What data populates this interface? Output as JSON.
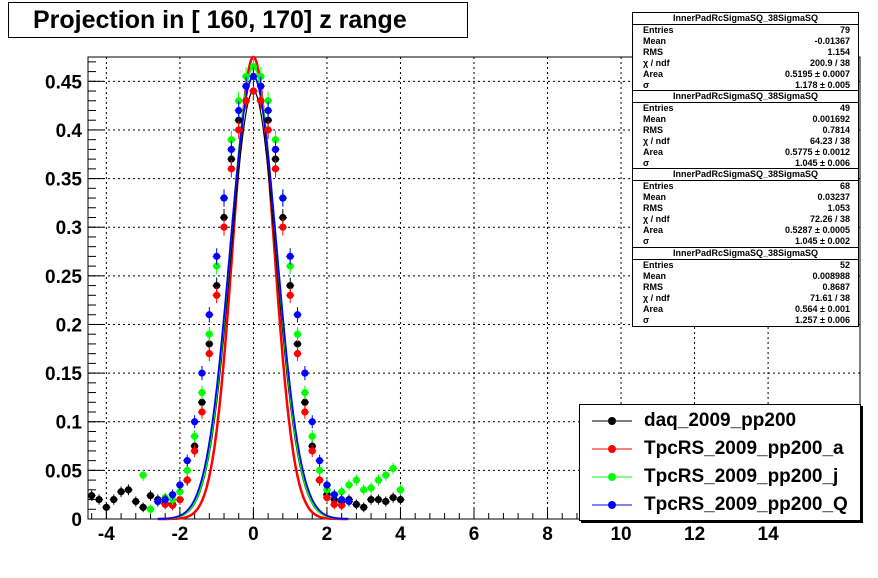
{
  "title": "Projection in [ 160, 170] z range",
  "stats": [
    {
      "name": "InnerPadRcSigmaSQ_38SigmaSQ",
      "rows": [
        [
          "Entries",
          "79"
        ],
        [
          "Mean",
          "-0.01367"
        ],
        [
          "RMS",
          "1.154"
        ],
        [
          "χ  / ndf",
          "200.9 / 38"
        ],
        [
          "Area",
          "0.5195 ± 0.0007"
        ],
        [
          "σ",
          "1.178 ± 0.005"
        ]
      ]
    },
    {
      "name": "InnerPadRcSigmaSQ_38SigmaSQ",
      "rows": [
        [
          "Entries",
          "49"
        ],
        [
          "Mean",
          "0.001692"
        ],
        [
          "RMS",
          "0.7814"
        ],
        [
          "χ  / ndf",
          "64.23 / 38"
        ],
        [
          "Area",
          "0.5775 ± 0.0012"
        ],
        [
          "σ",
          "1.045 ± 0.006"
        ]
      ]
    },
    {
      "name": "InnerPadRcSigmaSQ_38SigmaSQ",
      "rows": [
        [
          "Entries",
          "68"
        ],
        [
          "Mean",
          "0.03237"
        ],
        [
          "RMS",
          "1.053"
        ],
        [
          "χ  / ndf",
          "72.26 / 38"
        ],
        [
          "Area",
          "0.5287 ± 0.0005"
        ],
        [
          "σ",
          "1.045 ± 0.002"
        ]
      ]
    },
    {
      "name": "InnerPadRcSigmaSQ_38SigmaSQ",
      "rows": [
        [
          "Entries",
          "52"
        ],
        [
          "Mean",
          "0.008988"
        ],
        [
          "RMS",
          "0.8687"
        ],
        [
          "χ  / ndf",
          "71.61 / 38"
        ],
        [
          "Area",
          "0.564 ± 0.001"
        ],
        [
          "σ",
          "1.257 ± 0.006"
        ]
      ]
    }
  ],
  "legend": [
    {
      "label": "daq_2009_pp200",
      "color": "#000000"
    },
    {
      "label": "TpcRS_2009_pp200_a",
      "color": "#ff0000"
    },
    {
      "label": "TpcRS_2009_pp200_j",
      "color": "#00ff00"
    },
    {
      "label": "TpcRS_2009_pp200_Q",
      "color": "#0000ff"
    }
  ],
  "chart_data": {
    "type": "scatter",
    "title": "Projection in [ 160, 170] z range",
    "xlim": [
      -4.5,
      16.5
    ],
    "ylim": [
      0,
      0.475
    ],
    "xticks": [
      -4,
      -2,
      0,
      2,
      4,
      6,
      8,
      10,
      12,
      14
    ],
    "yticks": [
      0,
      0.05,
      0.1,
      0.15,
      0.2,
      0.25,
      0.3,
      0.35,
      0.4,
      0.45
    ],
    "grid": true,
    "legend_position": "bottom-right",
    "series": [
      {
        "name": "daq_2009_pp200",
        "color": "#000000",
        "x": [
          -4.4,
          -4.2,
          -4.0,
          -3.8,
          -3.6,
          -3.4,
          -3.2,
          -3.0,
          -2.8,
          -2.6,
          -2.4,
          -2.2,
          -2.0,
          -1.8,
          -1.6,
          -1.4,
          -1.2,
          -1.0,
          -0.8,
          -0.6,
          -0.4,
          -0.2,
          0.0,
          0.2,
          0.4,
          0.6,
          0.8,
          1.0,
          1.2,
          1.4,
          1.6,
          1.8,
          2.0,
          2.2,
          2.4,
          2.6,
          2.8,
          3.0,
          3.2,
          3.4,
          3.6,
          3.8,
          4.0
        ],
        "y": [
          0.024,
          0.02,
          0.012,
          0.02,
          0.028,
          0.03,
          0.018,
          0.012,
          0.024,
          0.02,
          0.016,
          0.015,
          0.02,
          0.04,
          0.075,
          0.12,
          0.18,
          0.24,
          0.31,
          0.37,
          0.41,
          0.43,
          0.44,
          0.43,
          0.41,
          0.37,
          0.31,
          0.24,
          0.18,
          0.12,
          0.075,
          0.04,
          0.025,
          0.02,
          0.018,
          0.02,
          0.015,
          0.012,
          0.02,
          0.02,
          0.018,
          0.022,
          0.02
        ]
      },
      {
        "name": "TpcRS_2009_pp200_a",
        "color": "#ff0000",
        "x": [
          -2.4,
          -2.2,
          -2.0,
          -1.8,
          -1.6,
          -1.4,
          -1.2,
          -1.0,
          -0.8,
          -0.6,
          -0.4,
          -0.2,
          0.0,
          0.2,
          0.4,
          0.6,
          0.8,
          1.0,
          1.2,
          1.4,
          1.6,
          1.8,
          2.0,
          2.2,
          2.4
        ],
        "y": [
          0.015,
          0.014,
          0.02,
          0.04,
          0.07,
          0.11,
          0.17,
          0.23,
          0.3,
          0.36,
          0.4,
          0.43,
          0.44,
          0.43,
          0.4,
          0.36,
          0.3,
          0.23,
          0.17,
          0.11,
          0.07,
          0.04,
          0.022,
          0.015,
          0.014
        ]
      },
      {
        "name": "TpcRS_2009_pp200_j",
        "color": "#00ff00",
        "x": [
          -3.0,
          -2.8,
          -2.6,
          -2.4,
          -2.2,
          -2.0,
          -1.8,
          -1.6,
          -1.4,
          -1.2,
          -1.0,
          -0.8,
          -0.6,
          -0.4,
          -0.2,
          0.0,
          0.2,
          0.4,
          0.6,
          0.8,
          1.0,
          1.2,
          1.4,
          1.6,
          1.8,
          2.0,
          2.2,
          2.4,
          2.6,
          2.8,
          3.0,
          3.2,
          3.4,
          3.6,
          3.8,
          4.0
        ],
        "y": [
          0.045,
          0.01,
          0.018,
          0.022,
          0.02,
          0.028,
          0.05,
          0.085,
          0.13,
          0.19,
          0.26,
          0.33,
          0.39,
          0.43,
          0.455,
          0.465,
          0.455,
          0.43,
          0.39,
          0.33,
          0.26,
          0.19,
          0.13,
          0.085,
          0.05,
          0.03,
          0.025,
          0.028,
          0.035,
          0.04,
          0.03,
          0.032,
          0.04,
          0.045,
          0.052,
          0.03
        ]
      },
      {
        "name": "TpcRS_2009_pp200_Q",
        "color": "#0000ff",
        "x": [
          -2.6,
          -2.4,
          -2.2,
          -2.0,
          -1.8,
          -1.6,
          -1.4,
          -1.2,
          -1.0,
          -0.8,
          -0.6,
          -0.4,
          -0.2,
          0.0,
          0.2,
          0.4,
          0.6,
          0.8,
          1.0,
          1.2,
          1.4,
          1.6,
          1.8,
          2.0,
          2.2,
          2.4,
          2.6
        ],
        "y": [
          0.018,
          0.02,
          0.025,
          0.035,
          0.06,
          0.1,
          0.15,
          0.21,
          0.27,
          0.33,
          0.38,
          0.42,
          0.445,
          0.455,
          0.445,
          0.42,
          0.38,
          0.33,
          0.27,
          0.21,
          0.15,
          0.1,
          0.06,
          0.035,
          0.025,
          0.02,
          0.018
        ]
      }
    ]
  }
}
